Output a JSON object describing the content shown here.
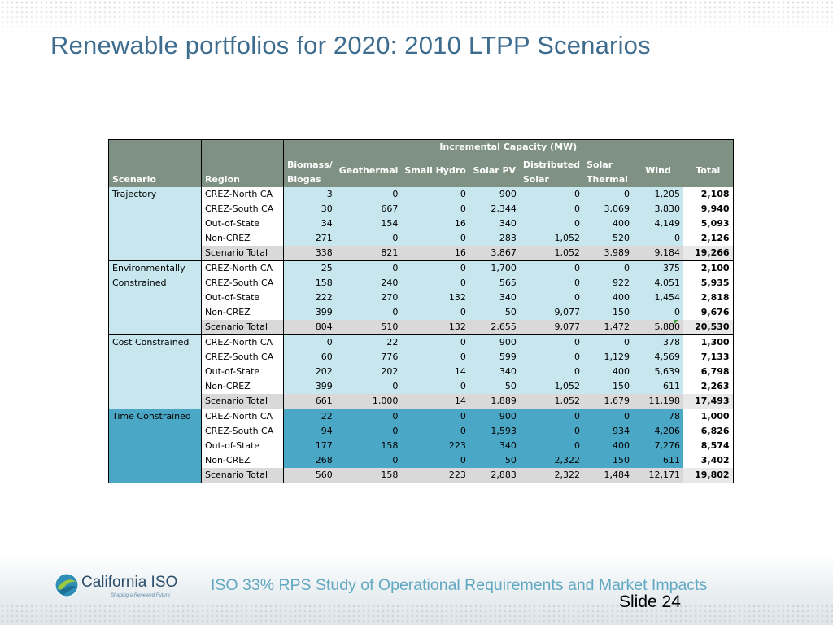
{
  "slide": {
    "title": "Renewable portfolios for 2020: 2010 LTPP Scenarios",
    "footer_text": "ISO 33% RPS Study of Operational Requirements and Market Impacts",
    "slide_number": "Slide 24",
    "logo_name": "California ISO",
    "logo_tagline": "Shaping a Renewed Future"
  },
  "table": {
    "group_header": "Incremental Capacity (MW)",
    "col_scenario": "Scenario",
    "col_region": "Region",
    "col_biomass_1": "Biomass/",
    "col_biomass_2": "Biogas",
    "col_geothermal": "Geothermal",
    "col_small_hydro": "Small Hydro",
    "col_solar_pv": "Solar PV",
    "col_distributed_1": "Distributed",
    "col_distributed_2": "Solar",
    "col_solar_thermal_1": "Solar",
    "col_solar_thermal_2": "Thermal",
    "col_wind": "Wind",
    "col_total": "Total",
    "scenarios": [
      {
        "name": "Trajectory",
        "rows": [
          [
            "CREZ-North CA",
            "3",
            "0",
            "0",
            "900",
            "0",
            "0",
            "1,205",
            "2,108"
          ],
          [
            "CREZ-South CA",
            "30",
            "667",
            "0",
            "2,344",
            "0",
            "3,069",
            "3,830",
            "9,940"
          ],
          [
            "Out-of-State",
            "34",
            "154",
            "16",
            "340",
            "0",
            "400",
            "4,149",
            "5,093"
          ],
          [
            "Non-CREZ",
            "271",
            "0",
            "0",
            "283",
            "1,052",
            "520",
            "0",
            "2,126"
          ],
          [
            "Scenario Total",
            "338",
            "821",
            "16",
            "3,867",
            "1,052",
            "3,989",
            "9,184",
            "19,266"
          ]
        ]
      },
      {
        "name": "Environmentally Constrained",
        "rows": [
          [
            "CREZ-North CA",
            "25",
            "0",
            "0",
            "1,700",
            "0",
            "0",
            "375",
            "2,100"
          ],
          [
            "CREZ-South CA",
            "158",
            "240",
            "0",
            "565",
            "0",
            "922",
            "4,051",
            "5,935"
          ],
          [
            "Out-of-State",
            "222",
            "270",
            "132",
            "340",
            "0",
            "400",
            "1,454",
            "2,818"
          ],
          [
            "Non-CREZ",
            "399",
            "0",
            "0",
            "50",
            "9,077",
            "150",
            "0",
            "9,676"
          ],
          [
            "Scenario Total",
            "804",
            "510",
            "132",
            "2,655",
            "9,077",
            "1,472",
            "5,880",
            "20,530"
          ]
        ]
      },
      {
        "name": "Cost Constrained",
        "rows": [
          [
            "CREZ-North CA",
            "0",
            "22",
            "0",
            "900",
            "0",
            "0",
            "378",
            "1,300"
          ],
          [
            "CREZ-South CA",
            "60",
            "776",
            "0",
            "599",
            "0",
            "1,129",
            "4,569",
            "7,133"
          ],
          [
            "Out-of-State",
            "202",
            "202",
            "14",
            "340",
            "0",
            "400",
            "5,639",
            "6,798"
          ],
          [
            "Non-CREZ",
            "399",
            "0",
            "0",
            "50",
            "1,052",
            "150",
            "611",
            "2,263"
          ],
          [
            "Scenario Total",
            "661",
            "1,000",
            "14",
            "1,889",
            "1,052",
            "1,679",
            "11,198",
            "17,493"
          ]
        ]
      },
      {
        "name": "Time Constrained",
        "rows": [
          [
            "CREZ-North CA",
            "22",
            "0",
            "0",
            "900",
            "0",
            "0",
            "78",
            "1,000"
          ],
          [
            "CREZ-South CA",
            "94",
            "0",
            "0",
            "1,593",
            "0",
            "934",
            "4,206",
            "6,826"
          ],
          [
            "Out-of-State",
            "177",
            "158",
            "223",
            "340",
            "0",
            "400",
            "7,276",
            "8,574"
          ],
          [
            "Non-CREZ",
            "268",
            "0",
            "0",
            "50",
            "2,322",
            "150",
            "611",
            "3,402"
          ],
          [
            "Scenario Total",
            "560",
            "158",
            "223",
            "2,883",
            "2,322",
            "1,484",
            "12,171",
            "19,802"
          ]
        ]
      }
    ]
  },
  "colors": {
    "title": "#3d6c8f",
    "header_bg": "#7f9182",
    "light_blue": "#c7e6ee",
    "dark_blue": "#4aa8c6",
    "total_row": "#d9d9d9",
    "footer_text": "#61a8c2"
  }
}
